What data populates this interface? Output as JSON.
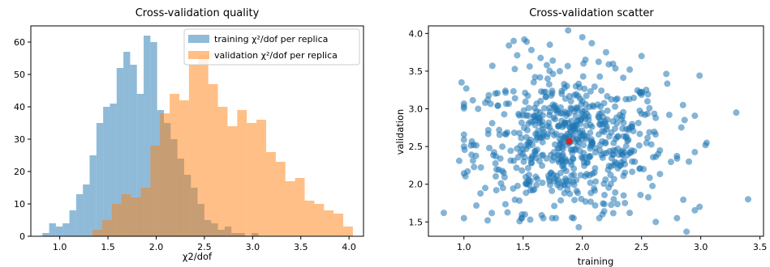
{
  "chart_data": [
    {
      "type": "bar",
      "subtype": "histogram",
      "title": "Cross-validation quality",
      "xlabel": "χ2/dof",
      "ylabel": "",
      "xlim": [
        0.7,
        4.15
      ],
      "ylim": [
        0,
        65
      ],
      "xticks": [
        1.0,
        1.5,
        2.0,
        2.5,
        3.0,
        3.5,
        4.0
      ],
      "yticks": [
        0,
        10,
        20,
        30,
        40,
        50,
        60
      ],
      "grid": false,
      "legend": "top-right",
      "series": [
        {
          "name": "training χ²/dof per replica",
          "color": "#1f77b4",
          "opacity": 0.5,
          "bins": [
            [
              0.82,
              0.89,
              1
            ],
            [
              0.89,
              0.96,
              4
            ],
            [
              0.96,
              1.03,
              3
            ],
            [
              1.03,
              1.1,
              4
            ],
            [
              1.1,
              1.17,
              8
            ],
            [
              1.17,
              1.24,
              13
            ],
            [
              1.24,
              1.31,
              16
            ],
            [
              1.31,
              1.38,
              25
            ],
            [
              1.38,
              1.45,
              35
            ],
            [
              1.45,
              1.52,
              40
            ],
            [
              1.52,
              1.59,
              41
            ],
            [
              1.59,
              1.66,
              52
            ],
            [
              1.66,
              1.73,
              57
            ],
            [
              1.73,
              1.8,
              53
            ],
            [
              1.8,
              1.87,
              44
            ],
            [
              1.87,
              1.94,
              62
            ],
            [
              1.94,
              2.01,
              60
            ],
            [
              2.01,
              2.08,
              39
            ],
            [
              2.08,
              2.15,
              35
            ],
            [
              2.15,
              2.22,
              30
            ],
            [
              2.22,
              2.29,
              24
            ],
            [
              2.29,
              2.36,
              19
            ],
            [
              2.36,
              2.43,
              15
            ],
            [
              2.43,
              2.5,
              10
            ],
            [
              2.5,
              2.57,
              5
            ],
            [
              2.57,
              2.64,
              4
            ],
            [
              2.64,
              2.71,
              2
            ],
            [
              2.71,
              2.78,
              3
            ],
            [
              2.78,
              2.85,
              1
            ],
            [
              2.85,
              2.92,
              1
            ],
            [
              2.92,
              2.99,
              0
            ],
            [
              2.99,
              3.06,
              1
            ]
          ]
        },
        {
          "name": "validation χ²/dof per replica",
          "color": "#ff7f0e",
          "opacity": 0.5,
          "bins": [
            [
              1.34,
              1.44,
              2
            ],
            [
              1.44,
              1.54,
              5
            ],
            [
              1.54,
              1.64,
              10
            ],
            [
              1.64,
              1.74,
              13
            ],
            [
              1.74,
              1.84,
              12
            ],
            [
              1.84,
              1.94,
              15
            ],
            [
              1.94,
              2.04,
              28
            ],
            [
              2.04,
              2.14,
              38
            ],
            [
              2.14,
              2.24,
              44
            ],
            [
              2.24,
              2.34,
              42
            ],
            [
              2.34,
              2.44,
              53
            ],
            [
              2.44,
              2.54,
              56
            ],
            [
              2.54,
              2.64,
              47
            ],
            [
              2.64,
              2.74,
              40
            ],
            [
              2.74,
              2.84,
              34
            ],
            [
              2.84,
              2.94,
              39
            ],
            [
              2.94,
              3.04,
              35
            ],
            [
              3.04,
              3.14,
              36
            ],
            [
              3.14,
              3.24,
              26
            ],
            [
              3.24,
              3.34,
              23
            ],
            [
              3.34,
              3.44,
              17
            ],
            [
              3.44,
              3.54,
              18
            ],
            [
              3.54,
              3.64,
              11
            ],
            [
              3.64,
              3.74,
              10
            ],
            [
              3.74,
              3.84,
              8
            ],
            [
              3.84,
              3.94,
              7
            ],
            [
              3.94,
              4.04,
              3
            ]
          ]
        }
      ]
    },
    {
      "type": "scatter",
      "title": "Cross-validation scatter",
      "xlabel": "training",
      "ylabel": "validation",
      "xlim": [
        0.7,
        3.53
      ],
      "ylim": [
        1.31,
        4.1
      ],
      "xticks": [
        1.0,
        1.5,
        2.0,
        2.5,
        3.0,
        3.5
      ],
      "yticks": [
        1.5,
        2.0,
        2.5,
        3.0,
        3.5,
        4.0
      ],
      "grid": false,
      "series": [
        {
          "color": "#1f77b4",
          "opacity": 0.55,
          "points": [
            [
              0.83,
              1.62
            ],
            [
              0.96,
              2.31
            ],
            [
              0.98,
              3.35
            ],
            [
              1.0,
              2.5
            ],
            [
              1.02,
              3.27
            ],
            [
              1.12,
              3.0
            ],
            [
              1.18,
              1.95
            ],
            [
              1.2,
              1.52
            ],
            [
              1.21,
              3.18
            ],
            [
              1.24,
              3.57
            ],
            [
              1.27,
              2.37
            ],
            [
              1.35,
              3.24
            ],
            [
              1.38,
              3.84
            ],
            [
              1.42,
              3.9
            ],
            [
              1.45,
              3.71
            ],
            [
              1.47,
              1.51
            ],
            [
              1.51,
              3.92
            ],
            [
              1.53,
              3.89
            ],
            [
              1.57,
              3.78
            ],
            [
              1.7,
              3.58
            ],
            [
              1.75,
              3.64
            ],
            [
              1.88,
              4.04
            ],
            [
              2.0,
              3.95
            ],
            [
              2.08,
              3.87
            ],
            [
              2.2,
              3.75
            ],
            [
              2.4,
              3.52
            ],
            [
              2.5,
              3.7
            ],
            [
              2.55,
              3.1
            ],
            [
              2.62,
              2.88
            ],
            [
              2.8,
              2.34
            ],
            [
              2.85,
              3.05
            ],
            [
              2.9,
              2.3
            ],
            [
              2.99,
              3.44
            ],
            [
              3.05,
              2.55
            ],
            [
              3.04,
              2.52
            ],
            [
              3.3,
              2.95
            ],
            [
              3.4,
              1.8
            ],
            [
              2.99,
              1.7
            ],
            [
              2.88,
              1.37
            ],
            [
              2.62,
              1.5
            ],
            [
              2.4,
              1.62
            ],
            [
              2.17,
              1.6
            ],
            [
              1.56,
              1.53
            ],
            [
              1.97,
              1.43
            ],
            [
              1.88,
              2.56
            ]
          ],
          "cluster": {
            "center": [
              1.9,
              2.55
            ],
            "sd": [
              0.4,
              0.45
            ],
            "count": 620
          }
        },
        {
          "color": "#e3201a",
          "points": [
            [
              1.89,
              2.57
            ]
          ]
        }
      ]
    }
  ]
}
